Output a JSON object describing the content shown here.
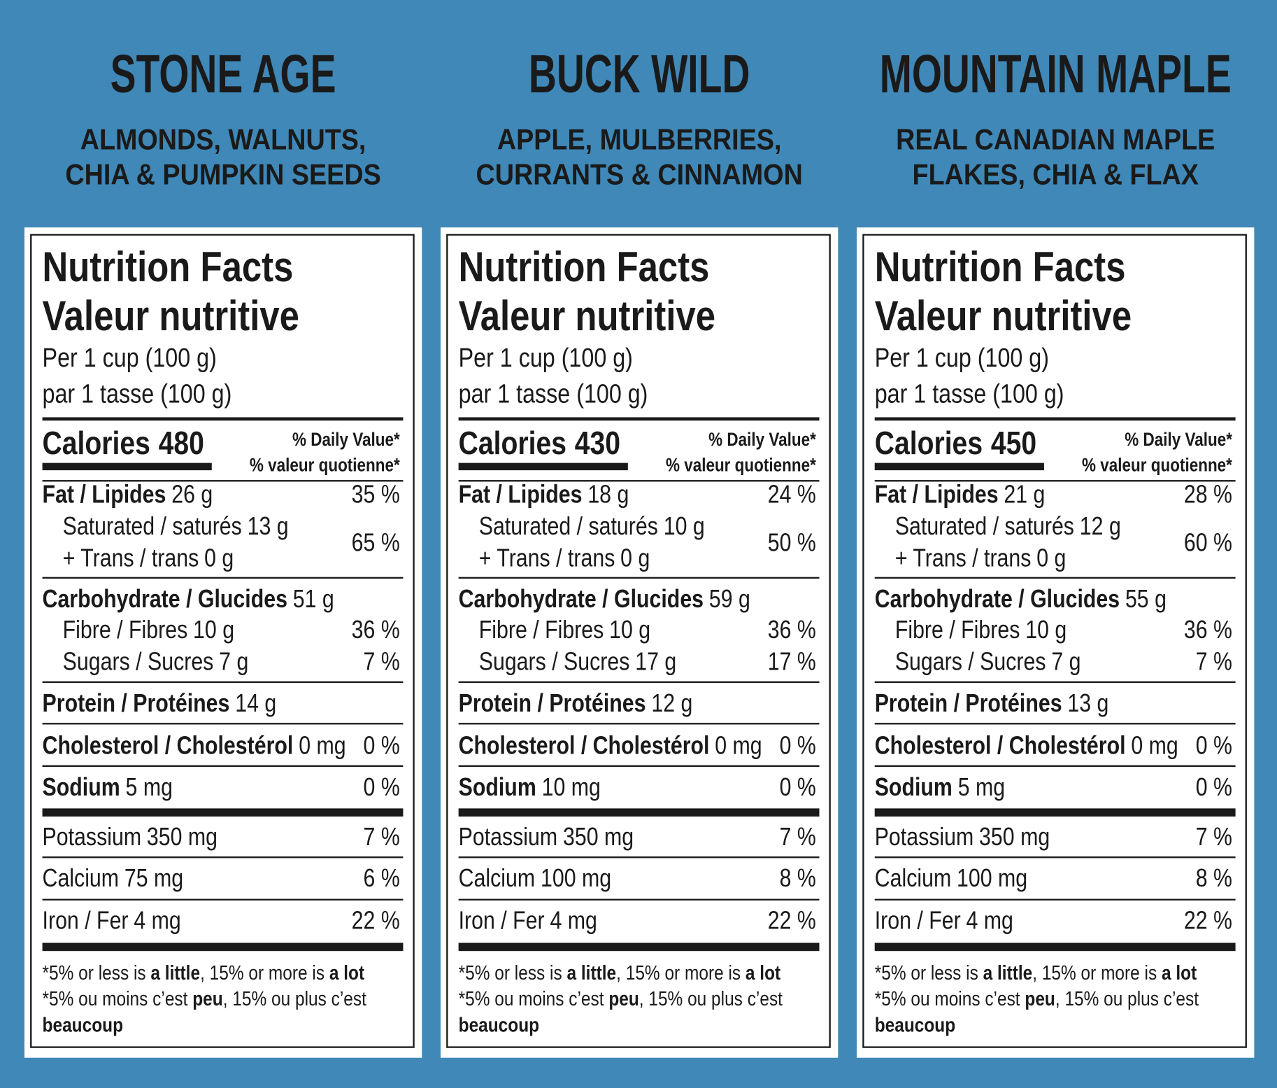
{
  "panels": [
    {
      "name": "STONE AGE",
      "description": [
        "ALMONDS, WALNUTS,",
        "CHIA & PUMPKIN SEEDS"
      ],
      "label": {
        "title": [
          "Nutrition Facts",
          "Valeur nutritive"
        ],
        "serving": [
          "Per 1 cup (100 g)",
          "par 1 tasse (100 g)"
        ],
        "calories": {
          "label": "Calories",
          "value": 480
        },
        "daily_value": [
          "% Daily Value*",
          "% valeur quotienne*"
        ],
        "rows": [
          {
            "name": "Fat / Lipides",
            "amount": "26 g",
            "dv": "35 %"
          },
          {
            "name": "Saturated / saturés",
            "amount": "13 g"
          },
          {
            "name": "+ Trans / trans",
            "amount": "0 g",
            "dv": "65 %"
          },
          {
            "name": "Carbohydrate / Glucides",
            "amount": "51 g"
          },
          {
            "name": "Fibre / Fibres",
            "amount": "10 g",
            "dv": "36 %"
          },
          {
            "name": "Sugars / Sucres",
            "amount": "7 g",
            "dv": "7 %"
          },
          {
            "name": "Protein / Protéines",
            "amount": "14 g"
          },
          {
            "name": "Cholesterol / Cholestérol",
            "amount": "0 mg",
            "dv": "0 %"
          },
          {
            "name": "Sodium",
            "amount": "5 mg",
            "dv": "0 %"
          },
          {
            "name": "Potassium",
            "amount": "350 mg",
            "dv": "7 %"
          },
          {
            "name": "Calcium",
            "amount": "75 mg",
            "dv": "6 %"
          },
          {
            "name": "Iron / Fer",
            "amount": "4 mg",
            "dv": "22 %"
          }
        ],
        "footnote": [
          [
            {
              "text": "*5% or less is "
            },
            {
              "text": "a little",
              "bold": true
            },
            {
              "text": ", 15% or more is "
            },
            {
              "text": "a lot",
              "bold": true
            }
          ],
          [
            {
              "text": "*5% ou moins c’est "
            },
            {
              "text": "peu",
              "bold": true
            },
            {
              "text": ", 15% ou plus c’est"
            }
          ],
          [
            {
              "text": "beaucoup",
              "bold": true
            }
          ]
        ]
      }
    },
    {
      "name": "BUCK WILD",
      "description": [
        "APPLE, MULBERRIES,",
        "CURRANTS & CINNAMON"
      ],
      "label": {
        "title": [
          "Nutrition Facts",
          "Valeur nutritive"
        ],
        "serving": [
          "Per 1 cup (100 g)",
          "par 1 tasse (100 g)"
        ],
        "calories": {
          "label": "Calories",
          "value": 430
        },
        "daily_value": [
          "% Daily Value*",
          "% valeur quotienne*"
        ],
        "rows": [
          {
            "name": "Fat / Lipides",
            "amount": "18 g",
            "dv": "24 %"
          },
          {
            "name": "Saturated / saturés",
            "amount": "10 g"
          },
          {
            "name": "+ Trans / trans",
            "amount": "0 g",
            "dv": "50 %"
          },
          {
            "name": "Carbohydrate / Glucides",
            "amount": "59 g"
          },
          {
            "name": "Fibre / Fibres",
            "amount": "10 g",
            "dv": "36 %"
          },
          {
            "name": "Sugars / Sucres",
            "amount": "17 g",
            "dv": "17 %"
          },
          {
            "name": "Protein / Protéines",
            "amount": "12 g"
          },
          {
            "name": "Cholesterol / Cholestérol",
            "amount": "0 mg",
            "dv": "0 %"
          },
          {
            "name": "Sodium",
            "amount": "10 mg",
            "dv": "0 %"
          },
          {
            "name": "Potassium",
            "amount": "350 mg",
            "dv": "7 %"
          },
          {
            "name": "Calcium",
            "amount": "100 mg",
            "dv": "8 %"
          },
          {
            "name": "Iron / Fer",
            "amount": "4 mg",
            "dv": "22 %"
          }
        ],
        "footnote": [
          [
            {
              "text": "*5% or less is "
            },
            {
              "text": "a little",
              "bold": true
            },
            {
              "text": ", 15% or more is "
            },
            {
              "text": "a lot",
              "bold": true
            }
          ],
          [
            {
              "text": "*5% ou moins c’est "
            },
            {
              "text": "peu",
              "bold": true
            },
            {
              "text": ", 15% ou plus c’est"
            }
          ],
          [
            {
              "text": "beaucoup",
              "bold": true
            }
          ]
        ]
      }
    },
    {
      "name": "MOUNTAIN MAPLE",
      "description": [
        "REAL CANADIAN MAPLE",
        "FLAKES, CHIA & FLAX"
      ],
      "label": {
        "title": [
          "Nutrition Facts",
          "Valeur nutritive"
        ],
        "serving": [
          "Per 1 cup (100 g)",
          "par 1 tasse (100 g)"
        ],
        "calories": {
          "label": "Calories",
          "value": 450
        },
        "daily_value": [
          "% Daily Value*",
          "% valeur quotienne*"
        ],
        "rows": [
          {
            "name": "Fat / Lipides",
            "amount": "21 g",
            "dv": "28 %"
          },
          {
            "name": "Saturated / saturés",
            "amount": "12 g"
          },
          {
            "name": "+ Trans / trans",
            "amount": "0 g",
            "dv": "60 %"
          },
          {
            "name": "Carbohydrate / Glucides",
            "amount": "55 g"
          },
          {
            "name": "Fibre / Fibres",
            "amount": "10 g",
            "dv": "36 %"
          },
          {
            "name": "Sugars / Sucres",
            "amount": "7 g",
            "dv": "7 %"
          },
          {
            "name": "Protein / Protéines",
            "amount": "13 g"
          },
          {
            "name": "Cholesterol / Cholestérol",
            "amount": "0 mg",
            "dv": "0 %"
          },
          {
            "name": "Sodium",
            "amount": "5 mg",
            "dv": "0 %"
          },
          {
            "name": "Potassium",
            "amount": "350 mg",
            "dv": "7 %"
          },
          {
            "name": "Calcium",
            "amount": "100 mg",
            "dv": "8 %"
          },
          {
            "name": "Iron / Fer",
            "amount": "4 mg",
            "dv": "22 %"
          }
        ],
        "footnote": [
          [
            {
              "text": "*5% or less is "
            },
            {
              "text": "a little",
              "bold": true
            },
            {
              "text": ", 15% or more is "
            },
            {
              "text": "a lot",
              "bold": true
            }
          ],
          [
            {
              "text": "*5% ou moins c’est "
            },
            {
              "text": "peu",
              "bold": true
            },
            {
              "text": ", 15% ou plus c’est"
            }
          ],
          [
            {
              "text": "beaucoup",
              "bold": true
            }
          ]
        ]
      }
    }
  ]
}
